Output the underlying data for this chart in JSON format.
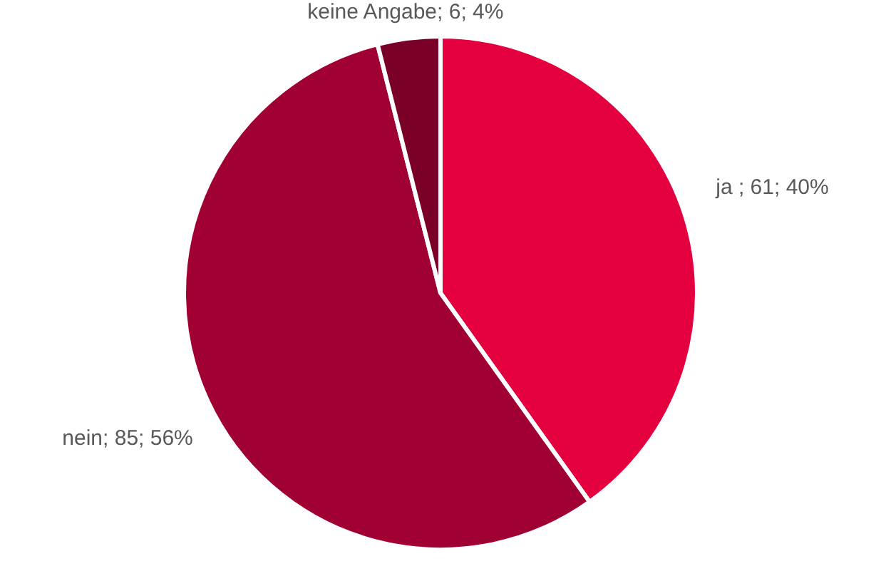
{
  "chart_data": {
    "type": "pie",
    "categories": [
      "ja ",
      "nein",
      "keine Angabe"
    ],
    "values": [
      61,
      85,
      6
    ],
    "colors": [
      "#e4003f",
      "#a10033",
      "#7a0028"
    ],
    "value_labels": [
      "61; 40%",
      "85; 56%",
      "6; 4%"
    ]
  }
}
